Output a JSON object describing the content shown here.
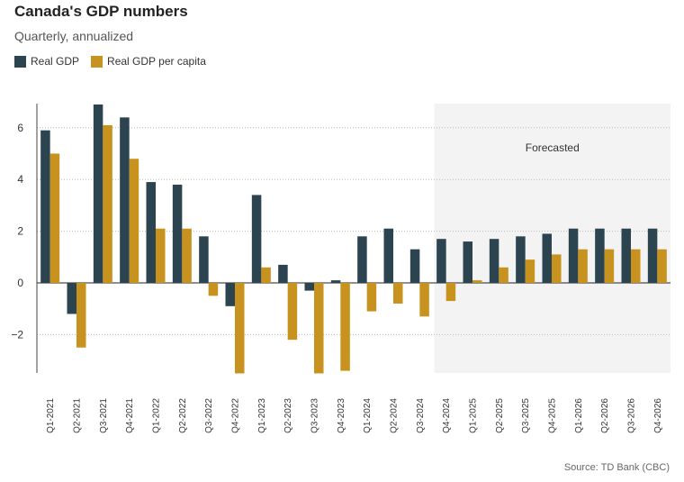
{
  "title": "Canada's GDP numbers",
  "subtitle": "Quarterly, annualized",
  "source": "Source: TD Bank (CBC)",
  "colors": {
    "real_gdp": "#2b4450",
    "real_gdp_per_capita": "#c8921f",
    "forecast_band": "#f3f3f3",
    "gridline": "#bbbbbb"
  },
  "chart_data": {
    "type": "bar",
    "title": "Canada's GDP numbers",
    "subtitle": "Quarterly, annualized",
    "xlabel": "",
    "ylabel": "",
    "ylim": [
      -3.5,
      7
    ],
    "yticks": [
      -2,
      0,
      2,
      4,
      6
    ],
    "ytick_labels": [
      "−2",
      "0",
      "2",
      "4",
      "6"
    ],
    "grid": "horizontal dotted",
    "legend_position": "top-left",
    "categories": [
      "Q1-2021",
      "Q2-2021",
      "Q3-2021",
      "Q4-2021",
      "Q1-2022",
      "Q2-2022",
      "Q3-2022",
      "Q4-2022",
      "Q1-2023",
      "Q2-2023",
      "Q3-2023",
      "Q4-2023",
      "Q1-2024",
      "Q2-2024",
      "Q3-2024",
      "Q4-2024",
      "Q1-2025",
      "Q2-2025",
      "Q3-2025",
      "Q4-2025",
      "Q1-2026",
      "Q2-2026",
      "Q3-2026",
      "Q4-2026"
    ],
    "series": [
      {
        "name": "Real GDP",
        "values": [
          5.9,
          -1.2,
          6.9,
          6.4,
          3.9,
          3.8,
          1.8,
          -0.9,
          3.4,
          0.7,
          -0.3,
          0.1,
          1.8,
          2.1,
          1.3,
          1.7,
          1.6,
          1.7,
          1.8,
          1.9,
          2.1,
          2.1,
          2.1,
          2.1
        ]
      },
      {
        "name": "Real GDP per capita",
        "values": [
          5.0,
          -2.5,
          6.1,
          4.8,
          2.1,
          2.1,
          -0.5,
          -3.5,
          0.6,
          -2.2,
          -3.5,
          -3.4,
          -1.1,
          -0.8,
          -1.3,
          -0.7,
          0.1,
          0.6,
          0.9,
          1.1,
          1.3,
          1.3,
          1.3,
          1.3
        ]
      }
    ],
    "forecast": {
      "label": "Forecasted",
      "start": "Q4-2024",
      "end": "Q4-2026"
    }
  }
}
